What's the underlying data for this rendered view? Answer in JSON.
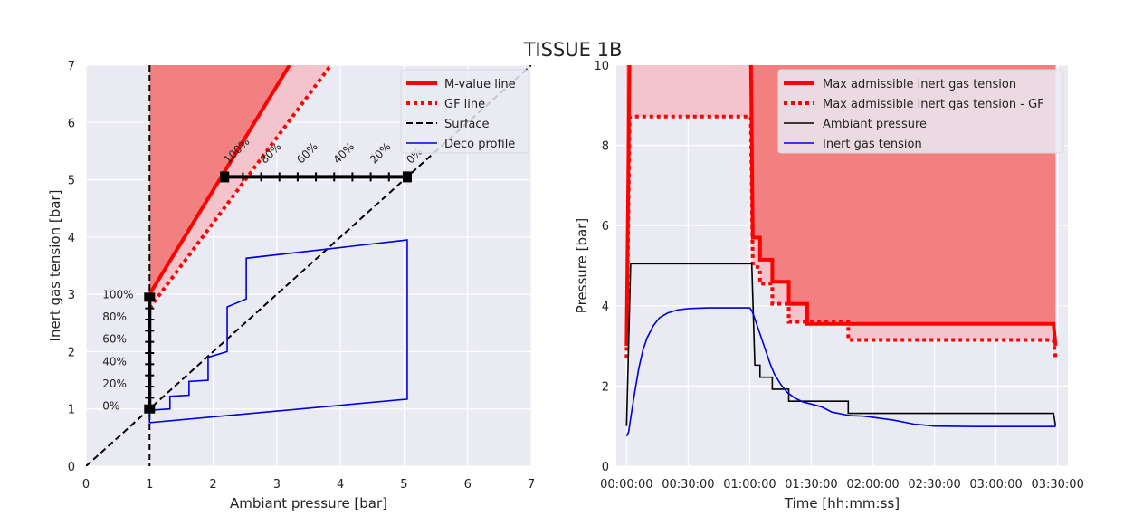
{
  "title": "TISSUE 1B",
  "colors": {
    "background": "#eaeaf2",
    "grid": "#ffffff",
    "red": "#ff0000",
    "red_fill": "#f28080",
    "pink_fill": "#f4c4cc",
    "black": "#000000",
    "blue": "#0000dd"
  },
  "chart_data": [
    {
      "type": "line",
      "xlabel": "Ambiant pressure [bar]",
      "ylabel": "Inert gas tension [bar]",
      "xlim": [
        0,
        7
      ],
      "ylim": [
        0,
        7
      ],
      "xticks": [
        "0",
        "1",
        "2",
        "3",
        "4",
        "5",
        "6",
        "7"
      ],
      "yticks": [
        "0",
        "1",
        "2",
        "3",
        "4",
        "5",
        "6",
        "7"
      ],
      "grid": true,
      "legend_position": "top-right",
      "series": [
        {
          "name": "M-value line",
          "style": "solid-red-thick",
          "x": [
            1,
            3.2
          ],
          "y": [
            3.0,
            7.0
          ]
        },
        {
          "name": "GF line",
          "style": "dotted-red-thick",
          "x": [
            1,
            3.85
          ],
          "y": [
            2.76,
            7.0
          ]
        },
        {
          "name": "Surface",
          "style": "dashed-black",
          "x": [
            0,
            7
          ],
          "y": [
            0,
            7
          ]
        },
        {
          "name": "Deco profile",
          "style": "solid-blue",
          "x": [
            1.0,
            1.05,
            1.32,
            1.32,
            1.62,
            1.62,
            1.92,
            1.92,
            2.22,
            2.22,
            2.52,
            2.52,
            5.05,
            5.05,
            1.0,
            1.0
          ],
          "y": [
            0.97,
            0.98,
            1.0,
            1.22,
            1.24,
            1.48,
            1.5,
            1.9,
            2.0,
            2.78,
            2.92,
            3.63,
            3.95,
            1.17,
            0.76,
            0.97
          ]
        }
      ],
      "surface_vertical_x": 1,
      "vertical_gf_scale": {
        "x": 1,
        "y_from": 1.0,
        "y_to": 2.95,
        "labels": [
          "100%",
          "80%",
          "60%",
          "40%",
          "20%",
          "0%"
        ]
      },
      "horizontal_gf_scale": {
        "y": 5.05,
        "x_from": 2.18,
        "x_to": 5.05,
        "labels": [
          "100%",
          "80%",
          "60%",
          "40%",
          "20%",
          "0%"
        ]
      }
    },
    {
      "type": "line",
      "xlabel": "Time [hh:mm:ss]",
      "ylabel": "Pressure [bar]",
      "ylim": [
        0,
        10
      ],
      "xlim_minutes": [
        -5,
        215
      ],
      "xticks": [
        "00:00:00",
        "00:30:00",
        "01:00:00",
        "01:30:00",
        "02:00:00",
        "02:30:00",
        "03:00:00",
        "03:30:00"
      ],
      "xticks_minutes": [
        0,
        30,
        60,
        90,
        120,
        150,
        180,
        210
      ],
      "yticks": [
        "0",
        "2",
        "4",
        "6",
        "8",
        "10"
      ],
      "grid": true,
      "legend_position": "top-right",
      "series": [
        {
          "name": "Max admissible inert gas tension",
          "style": "solid-red-thick",
          "t_minutes": [
            0,
            1.5,
            60.5,
            61.5,
            65,
            65,
            71,
            71,
            79,
            79,
            88,
            88,
            108,
            108,
            208,
            209
          ],
          "values": [
            3.0,
            10.5,
            10.5,
            5.7,
            5.7,
            5.15,
            5.15,
            4.6,
            4.6,
            4.05,
            4.05,
            3.55,
            3.55,
            3.55,
            3.55,
            3.0
          ]
        },
        {
          "name": "Max admissible inert gas tension - GF",
          "style": "dotted-red-thick",
          "t_minutes": [
            0,
            1.5,
            2.5,
            60.5,
            61.5,
            65,
            65,
            71,
            71,
            79,
            79,
            88,
            88,
            108,
            108,
            208,
            209
          ],
          "values": [
            2.7,
            8.7,
            8.72,
            8.72,
            5.0,
            4.95,
            4.55,
            4.55,
            4.05,
            4.05,
            3.6,
            3.6,
            3.6,
            3.6,
            3.15,
            3.15,
            2.7
          ]
        },
        {
          "name": "Ambiant pressure",
          "style": "solid-black",
          "t_minutes": [
            0,
            2,
            2,
            61,
            62.5,
            62.5,
            65,
            65,
            71,
            71,
            79,
            79,
            88,
            88,
            108,
            108,
            208,
            209
          ],
          "values": [
            1.0,
            5.05,
            5.05,
            5.05,
            2.52,
            2.52,
            2.52,
            2.22,
            2.22,
            1.92,
            1.92,
            1.62,
            1.62,
            1.62,
            1.62,
            1.32,
            1.32,
            1.0
          ]
        },
        {
          "name": "Inert gas tension",
          "style": "solid-blue",
          "t_minutes": [
            0,
            1,
            2,
            4,
            6,
            8,
            10,
            13,
            16,
            20,
            25,
            30,
            40,
            50,
            60,
            61,
            62,
            64,
            66,
            68,
            70,
            72,
            75,
            78,
            82,
            86,
            90,
            95,
            100,
            108,
            110,
            115,
            120,
            130,
            140,
            150,
            170,
            190,
            209
          ],
          "values": [
            0.75,
            0.85,
            1.2,
            1.85,
            2.45,
            2.9,
            3.2,
            3.5,
            3.7,
            3.82,
            3.9,
            3.93,
            3.95,
            3.95,
            3.95,
            3.88,
            3.75,
            3.45,
            3.15,
            2.85,
            2.55,
            2.3,
            2.05,
            1.85,
            1.7,
            1.6,
            1.55,
            1.48,
            1.35,
            1.27,
            1.26,
            1.25,
            1.22,
            1.15,
            1.05,
            1.0,
            0.99,
            0.99,
            0.99
          ]
        }
      ]
    }
  ]
}
